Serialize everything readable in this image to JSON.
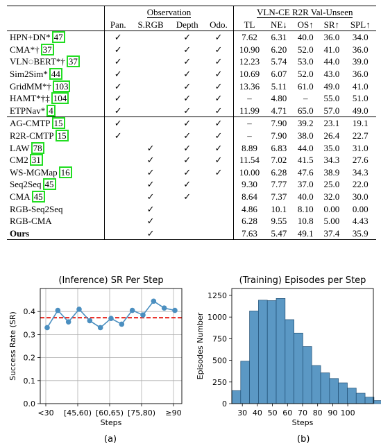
{
  "table": {
    "group_observation": "Observation",
    "group_results": "VLN-CE R2R Val-Unseen",
    "columns": [
      "Pan.",
      "S.RGB",
      "Depth",
      "Odo.",
      "TL",
      "NE↓",
      "OS↑",
      "SR↑",
      "SPL↑"
    ],
    "bold_columns": [
      5,
      6,
      7,
      8
    ],
    "check": "✓",
    "groups": [
      [
        {
          "name": "HPN+DN*",
          "cite": "47",
          "obs": [
            1,
            0,
            1,
            1
          ],
          "vals": [
            "7.62",
            "6.31",
            "40.0",
            "36.0",
            "34.0"
          ],
          "bold": []
        },
        {
          "name": "CMA*†",
          "cite": "37",
          "obs": [
            1,
            0,
            1,
            1
          ],
          "vals": [
            "10.90",
            "6.20",
            "52.0",
            "41.0",
            "36.0"
          ],
          "bold": []
        },
        {
          "name": "VLN◌BERT*†",
          "cite": "37",
          "obs": [
            1,
            0,
            1,
            1
          ],
          "vals": [
            "12.23",
            "5.74",
            "53.0",
            "44.0",
            "39.0"
          ],
          "bold": []
        },
        {
          "name": "Sim2Sim*",
          "cite": "44",
          "obs": [
            1,
            0,
            1,
            1
          ],
          "vals": [
            "10.69",
            "6.07",
            "52.0",
            "43.0",
            "36.0"
          ],
          "bold": []
        },
        {
          "name": "GridMM*†",
          "cite": "103",
          "obs": [
            1,
            0,
            1,
            1
          ],
          "vals": [
            "13.36",
            "5.11",
            "61.0",
            "49.0",
            "41.0"
          ],
          "bold": []
        },
        {
          "name": "HAMT*†‡",
          "cite": "104",
          "obs": [
            1,
            0,
            1,
            1
          ],
          "vals": [
            "–",
            "4.80",
            "–",
            "55.0",
            "51.0"
          ],
          "bold": []
        },
        {
          "name": "ETPNav*",
          "cite": "4",
          "obs": [
            1,
            0,
            1,
            1
          ],
          "vals": [
            "11.99",
            "4.71",
            "65.0",
            "57.0",
            "49.0"
          ],
          "bold": []
        }
      ],
      [
        {
          "name": "AG-CMTP",
          "cite": "15",
          "obs": [
            1,
            0,
            1,
            1
          ],
          "vals": [
            "–",
            "7.90",
            "39.2",
            "23.1",
            "19.1"
          ],
          "bold": []
        },
        {
          "name": "R2R-CMTP",
          "cite": "15",
          "obs": [
            1,
            0,
            1,
            1
          ],
          "vals": [
            "–",
            "7.90",
            "38.0",
            "26.4",
            "22.7"
          ],
          "bold": []
        },
        {
          "name": "LAW",
          "cite": "78",
          "obs": [
            0,
            1,
            1,
            1
          ],
          "vals": [
            "8.89",
            "6.83",
            "44.0",
            "35.0",
            "31.0"
          ],
          "bold": []
        },
        {
          "name": "CM2",
          "cite": "31",
          "obs": [
            0,
            1,
            1,
            1
          ],
          "vals": [
            "11.54",
            "7.02",
            "41.5",
            "34.3",
            "27.6"
          ],
          "bold": []
        },
        {
          "name": "WS-MGMap",
          "cite": "16",
          "obs": [
            0,
            1,
            1,
            1
          ],
          "vals": [
            "10.00",
            "6.28",
            "47.6",
            "38.9",
            "34.3"
          ],
          "bold": [
            3
          ]
        },
        {
          "name": "Seq2Seq",
          "cite": "45",
          "obs": [
            0,
            1,
            1,
            0
          ],
          "vals": [
            "9.30",
            "7.77",
            "37.0",
            "25.0",
            "22.0"
          ],
          "bold": []
        },
        {
          "name": "CMA",
          "cite": "45",
          "obs": [
            0,
            1,
            1,
            0
          ],
          "vals": [
            "8.64",
            "7.37",
            "40.0",
            "32.0",
            "30.0"
          ],
          "bold": []
        },
        {
          "name": "RGB-Seq2Seq",
          "cite": "",
          "obs": [
            0,
            1,
            0,
            0
          ],
          "vals": [
            "4.86",
            "10.1",
            "8.10",
            "0.00",
            "0.00"
          ],
          "bold": []
        },
        {
          "name": "RGB-CMA",
          "cite": "",
          "obs": [
            0,
            1,
            0,
            0
          ],
          "vals": [
            "6.28",
            "9.55",
            "10.8",
            "5.00",
            "4.43"
          ],
          "bold": []
        },
        {
          "name": "Ours",
          "cite": "",
          "obs": [
            0,
            1,
            0,
            0
          ],
          "vals": [
            "7.63",
            "5.47",
            "49.1",
            "37.4",
            "35.9"
          ],
          "bold": [
            1,
            2,
            4
          ],
          "bold_name": true
        }
      ]
    ]
  },
  "chart_data": [
    {
      "type": "line",
      "title": "(Inference) SR Per Step",
      "xlabel": "Steps",
      "ylabel": "Success Rate (SR)",
      "x_tick_labels": [
        "<30",
        "[45,60)",
        "[60,65)",
        "[75,80)",
        "≥90"
      ],
      "y_ticks": [
        "0.0",
        "0.1",
        "0.2",
        "0.3",
        "0.4"
      ],
      "ylim": [
        0,
        0.5
      ],
      "grid": true,
      "values": [
        0.33,
        0.405,
        0.355,
        0.41,
        0.36,
        0.33,
        0.37,
        0.345,
        0.405,
        0.385,
        0.445,
        0.415,
        0.405
      ],
      "reference_line": 0.373,
      "line_color": "#4b8fc0",
      "ref_color": "#e8231b"
    },
    {
      "type": "bar",
      "title": "(Training) Episodes per Step",
      "xlabel": "Steps",
      "ylabel": "Episodes Number",
      "x_tick_labels": [
        "30",
        "40",
        "50",
        "60",
        "70",
        "80",
        "90",
        "100"
      ],
      "x_ticks": [
        30,
        40,
        50,
        60,
        70,
        80,
        90,
        100
      ],
      "xlim": [
        23,
        117
      ],
      "y_ticks": [
        "0",
        "250",
        "500",
        "750",
        "1000",
        "1250"
      ],
      "ylim": [
        0,
        1330
      ],
      "bin_start": 23,
      "bin_width": 5.9,
      "values": [
        150,
        490,
        1070,
        1195,
        1190,
        1215,
        970,
        815,
        660,
        440,
        355,
        290,
        240,
        180,
        120,
        75,
        35
      ],
      "bar_color": "#5b98c4"
    }
  ],
  "captions": [
    "(a)",
    "(b)"
  ]
}
